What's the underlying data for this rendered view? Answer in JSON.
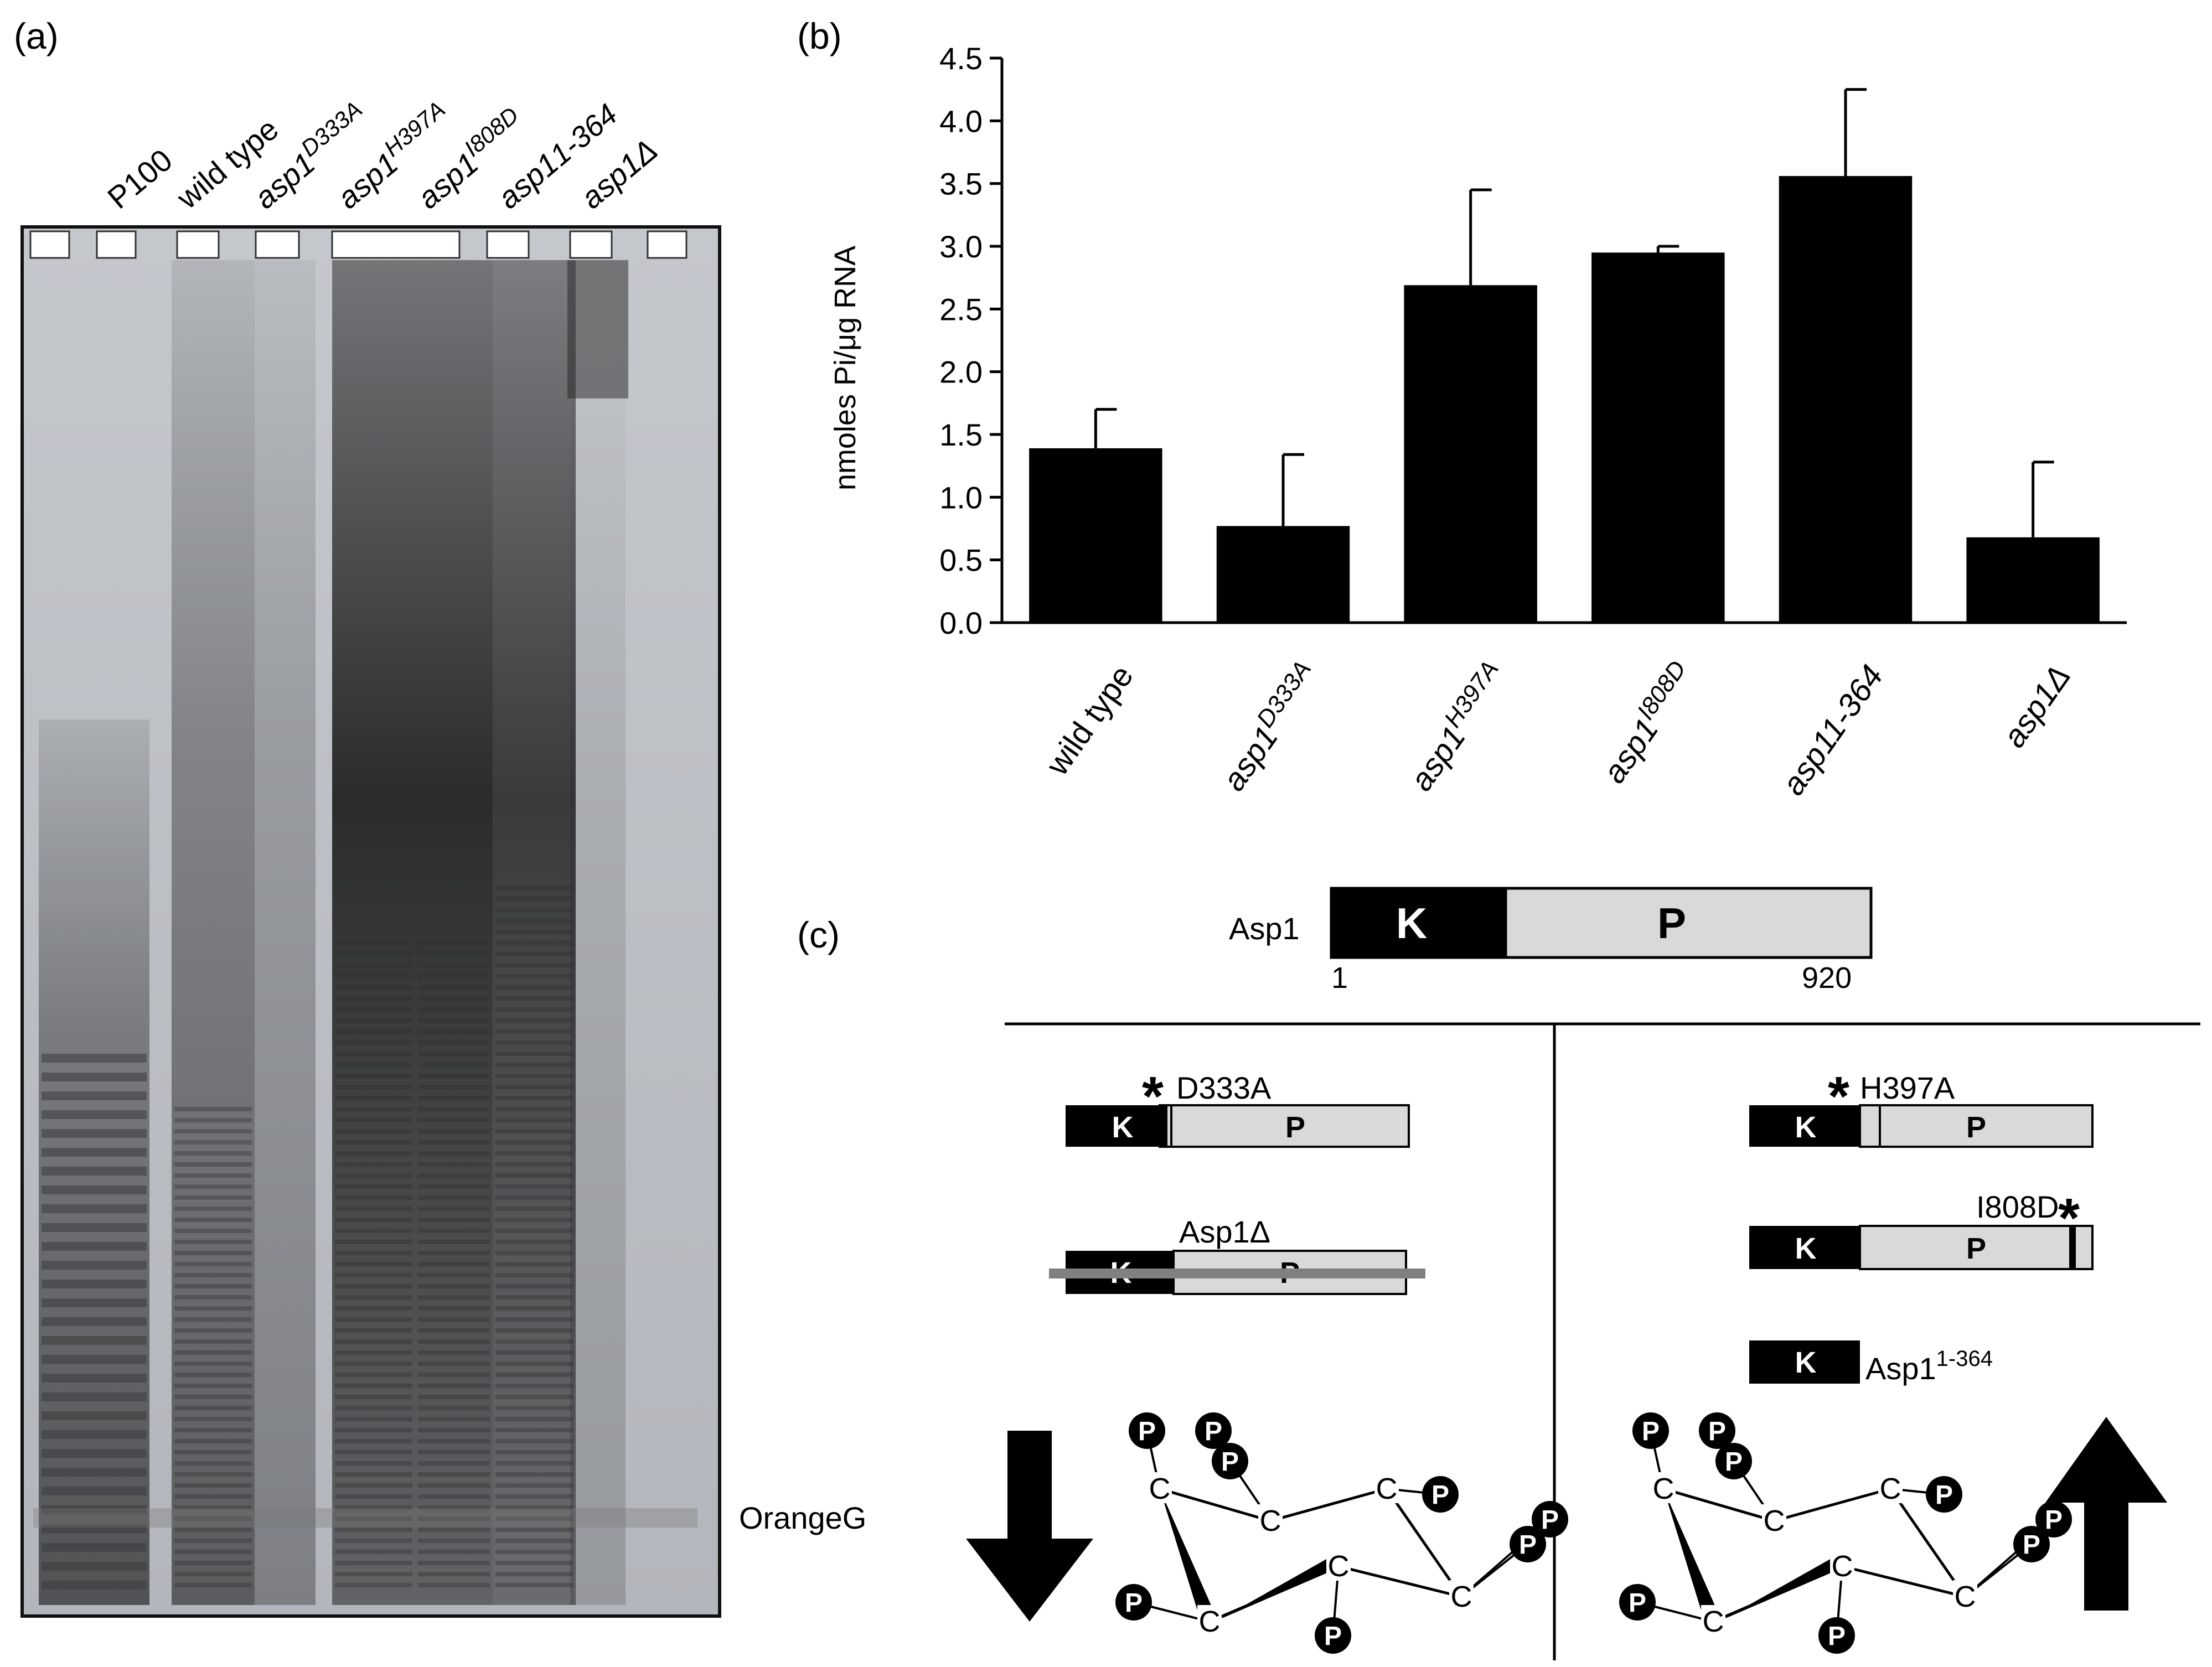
{
  "panels": {
    "a": {
      "label": "(a)",
      "lanes": [
        "P100",
        "wild type",
        "asp1",
        "asp1",
        "asp1",
        "asp1",
        "asp1Δ"
      ],
      "lane_suffixes": [
        "",
        "",
        "D333A",
        "H397A",
        "I808D",
        "1-364",
        ""
      ],
      "dye_label": "OrangeG"
    },
    "b": {
      "label": "(b)"
    },
    "c": {
      "label": "(c)",
      "full_name": "Asp1",
      "kinase": "K",
      "phosphatase": "P",
      "start": "1",
      "end": "920",
      "mut_d333a": "D333A",
      "mut_h397a": "H397A",
      "mut_i808d": "I808D",
      "deletion": "Asp1Δ",
      "trunc_name": "Asp1",
      "trunc_super": "1-364",
      "star": "*",
      "ip_carbon": "C",
      "ip_phosphate": "P",
      "arrow_left": "down",
      "arrow_right": "up"
    }
  },
  "chart_data": {
    "type": "bar",
    "categories": [
      "wild type",
      "asp1D333A",
      "asp1H397A",
      "asp1I808D",
      "asp11-364",
      "asp1Δ"
    ],
    "category_parts": [
      {
        "base": "wild type",
        "sup": ""
      },
      {
        "base": "asp1",
        "sup": "D333A"
      },
      {
        "base": "asp1",
        "sup": "H397A"
      },
      {
        "base": "asp1",
        "sup": "I808D"
      },
      {
        "base": "asp1",
        "sup": "1-364"
      },
      {
        "base": "asp1Δ",
        "sup": ""
      }
    ],
    "values": [
      1.39,
      0.77,
      2.69,
      2.95,
      3.56,
      0.68
    ],
    "errors": [
      0.31,
      0.57,
      0.76,
      0.05,
      0.69,
      0.6
    ],
    "ylabel": "nmoles Pi/μg RNA",
    "ylim": [
      0,
      4.5
    ],
    "yticks": [
      "0.0",
      "0.5",
      "1.0",
      "1.5",
      "2.0",
      "2.5",
      "3.0",
      "3.5",
      "4.0",
      "4.5"
    ],
    "bar_color": "#000000",
    "grid": false
  },
  "colors": {
    "gel_bg": "#b9bcc2",
    "bar": "#000000",
    "phosphatase_fill": "#d9d9d9",
    "deletion_line": "#808080"
  }
}
